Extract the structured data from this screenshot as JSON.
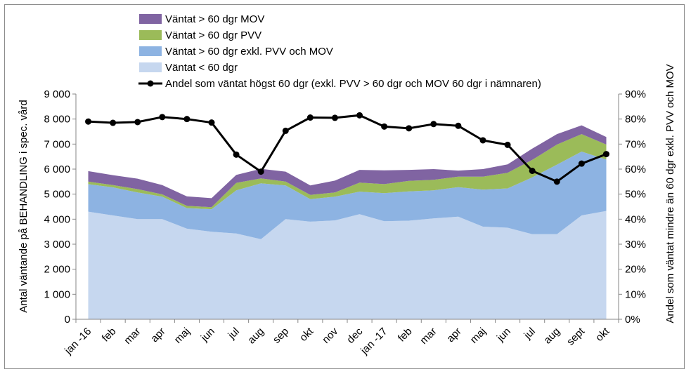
{
  "chart_data": {
    "type": "area",
    "categories": [
      "jan -16",
      "feb",
      "mar",
      "apr",
      "maj",
      "jun",
      "jul",
      "aug",
      "sep",
      "okt",
      "nov",
      "dec",
      "jan -17",
      "feb",
      "mar",
      "apr",
      "maj",
      "jun",
      "jul",
      "aug",
      "sept",
      "okt"
    ],
    "series": [
      {
        "name": "Väntat < 60 dgr",
        "kind": "stacked-area",
        "color": "#c6d7ef",
        "values": [
          4300,
          4150,
          4000,
          4000,
          3620,
          3500,
          3430,
          3200,
          4000,
          3900,
          3950,
          4200,
          3920,
          3940,
          4030,
          4100,
          3700,
          3660,
          3400,
          3400,
          4150,
          4330
        ]
      },
      {
        "name": "Väntat > 60 dgr exkl. PVV och MOV",
        "kind": "stacked-area",
        "color": "#8db3e2",
        "values": [
          1100,
          1120,
          1070,
          900,
          820,
          900,
          1720,
          2230,
          1350,
          900,
          950,
          900,
          1120,
          1170,
          1120,
          1180,
          1480,
          1570,
          2270,
          2780,
          2550,
          2050
        ]
      },
      {
        "name": "Väntat > 60 dgr PVV",
        "kind": "stacked-area",
        "color": "#9bbb59",
        "values": [
          100,
          90,
          130,
          90,
          90,
          80,
          300,
          200,
          150,
          170,
          170,
          360,
          360,
          420,
          420,
          420,
          520,
          620,
          700,
          800,
          700,
          600
        ]
      },
      {
        "name": "Väntat > 60 dgr MOV",
        "kind": "stacked-area",
        "color": "#8064a2",
        "values": [
          420,
          400,
          420,
          370,
          380,
          360,
          320,
          380,
          400,
          380,
          470,
          510,
          550,
          440,
          430,
          240,
          300,
          340,
          450,
          420,
          350,
          300
        ]
      },
      {
        "name": "Andel som väntat högst 60 dgr (exkl. PVV > 60 dgr och MOV 60 dgr i nämnaren)",
        "kind": "line",
        "axis": "right",
        "color": "#000000",
        "values": [
          0.79,
          0.785,
          0.788,
          0.808,
          0.8,
          0.786,
          0.658,
          0.59,
          0.753,
          0.806,
          0.805,
          0.815,
          0.77,
          0.763,
          0.78,
          0.773,
          0.715,
          0.697,
          0.593,
          0.55,
          0.622,
          0.66
        ]
      }
    ],
    "legend_order": [
      3,
      2,
      1,
      0,
      4
    ],
    "y_left": {
      "label": "Antal väntande på BEHANDLING i spec. vård",
      "ylim": [
        0,
        9000
      ],
      "ticks": [
        "0",
        "1 000",
        "2 000",
        "3 000",
        "4 000",
        "5 000",
        "6 000",
        "7 000",
        "8 000",
        "9 000"
      ]
    },
    "y_right": {
      "label": "Andel som väntat mindre än 60 dgr exkl. PVV och MOV",
      "ylim": [
        0,
        0.9
      ],
      "ticks": [
        "0%",
        "10%",
        "20%",
        "30%",
        "40%",
        "50%",
        "60%",
        "70%",
        "80%",
        "90%"
      ]
    },
    "legend_position": "top"
  }
}
